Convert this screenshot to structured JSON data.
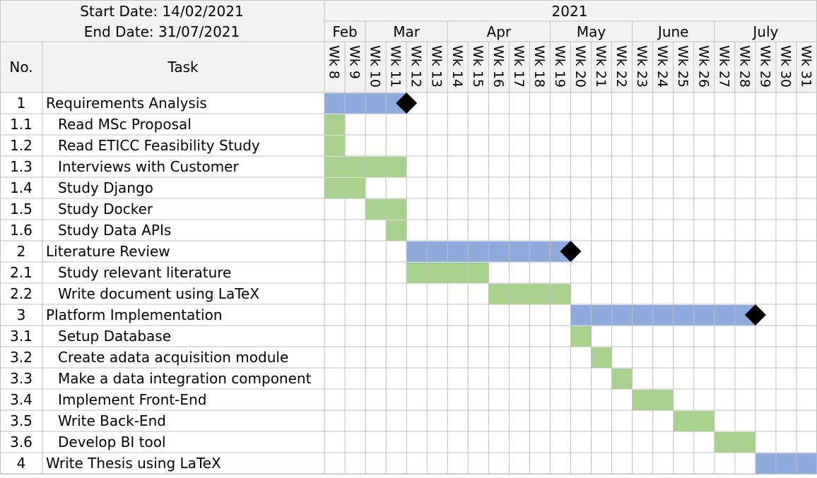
{
  "header": {
    "start_date": "Start Date: 14/02/2021",
    "end_date": "End Date: 31/07/2021",
    "year": "2021",
    "no_label": "No.",
    "task_label": "Task"
  },
  "colors": {
    "phase": "#8faadc",
    "subtask": "#a9d18e",
    "milestone": "#000000",
    "grid": "#bfbfbf",
    "header_bg": "#f2f2f2"
  },
  "chart_data": {
    "type": "gantt",
    "months": [
      {
        "label": "Feb",
        "weeks": 2
      },
      {
        "label": "Mar",
        "weeks": 4
      },
      {
        "label": "Apr",
        "weeks": 5
      },
      {
        "label": "May",
        "weeks": 4
      },
      {
        "label": "June",
        "weeks": 4
      },
      {
        "label": "July",
        "weeks": 5
      }
    ],
    "weeks": [
      "Wk 8",
      "Wk 9",
      "Wk 10",
      "Wk 11",
      "Wk 12",
      "Wk 13",
      "Wk 14",
      "Wk 15",
      "Wk 16",
      "Wk 17",
      "Wk 18",
      "Wk 19",
      "Wk 20",
      "Wk 21",
      "Wk 22",
      "Wk 23",
      "Wk 24",
      "Wk 25",
      "Wk 26",
      "Wk 27",
      "Wk 28",
      "Wk 29",
      "Wk 30",
      "Wk 31"
    ],
    "tasks": [
      {
        "no": "1",
        "task": "Requirements Analysis",
        "level": 0,
        "start_week": 8,
        "end_week": 11,
        "milestone_week": 12
      },
      {
        "no": "1.1",
        "task": "Read MSc Proposal",
        "level": 1,
        "start_week": 8,
        "end_week": 8
      },
      {
        "no": "1.2",
        "task": "Read ETICC Feasibility Study",
        "level": 1,
        "start_week": 8,
        "end_week": 8
      },
      {
        "no": "1.3",
        "task": "Interviews with Customer",
        "level": 1,
        "start_week": 8,
        "end_week": 11
      },
      {
        "no": "1.4",
        "task": "Study Django",
        "level": 1,
        "start_week": 8,
        "end_week": 9
      },
      {
        "no": "1.5",
        "task": "Study Docker",
        "level": 1,
        "start_week": 10,
        "end_week": 11
      },
      {
        "no": "1.6",
        "task": "Study Data APIs",
        "level": 1,
        "start_week": 11,
        "end_week": 11
      },
      {
        "no": "2",
        "task": "Literature Review",
        "level": 0,
        "start_week": 12,
        "end_week": 19,
        "milestone_week": 20
      },
      {
        "no": "2.1",
        "task": "Study relevant literature",
        "level": 1,
        "start_week": 12,
        "end_week": 15
      },
      {
        "no": "2.2",
        "task": "Write document using LaTeX",
        "level": 1,
        "start_week": 16,
        "end_week": 19
      },
      {
        "no": "3",
        "task": "Platform Implementation",
        "level": 0,
        "start_week": 20,
        "end_week": 28,
        "milestone_week": 29
      },
      {
        "no": "3.1",
        "task": "Setup Database",
        "level": 1,
        "start_week": 20,
        "end_week": 20
      },
      {
        "no": "3.2",
        "task": "Create adata acquisition module",
        "level": 1,
        "start_week": 21,
        "end_week": 21
      },
      {
        "no": "3.3",
        "task": "Make a data integration component",
        "level": 1,
        "start_week": 22,
        "end_week": 22
      },
      {
        "no": "3.4",
        "task": "Implement Front-End",
        "level": 1,
        "start_week": 23,
        "end_week": 24
      },
      {
        "no": "3.5",
        "task": "Write Back-End",
        "level": 1,
        "start_week": 25,
        "end_week": 26
      },
      {
        "no": "3.6",
        "task": "Develop BI tool",
        "level": 1,
        "start_week": 27,
        "end_week": 28
      },
      {
        "no": "4",
        "task": "Write Thesis using LaTeX",
        "level": 0,
        "start_week": 29,
        "end_week": 31
      }
    ]
  }
}
